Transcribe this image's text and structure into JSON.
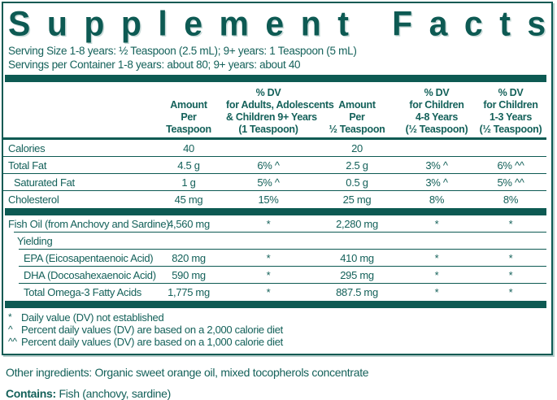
{
  "colors": {
    "teal": "#0d5a53"
  },
  "title": "Supplement Facts",
  "serving": {
    "line1": "Serving Size 1-8 years: ½ Teaspoon (2.5 mL); 9+ years: 1 Teaspoon (5 mL)",
    "line2": "Servings per Container 1-8 years: about 80; 9+ years: about 40"
  },
  "table": {
    "headers": [
      {
        "lines": []
      },
      {
        "lines": [
          "Amount",
          "Per",
          "Teaspoon"
        ]
      },
      {
        "lines": [
          "% DV",
          "for Adults, Adolescents",
          "& Children 9+ Years",
          "(1 Teaspoon)"
        ]
      },
      {
        "lines": [
          "Amount",
          "Per",
          "½ Teaspoon"
        ]
      },
      {
        "lines": [
          "% DV",
          "for Children",
          "4-8 Years",
          "(½ Teaspoon)"
        ]
      },
      {
        "lines": [
          "% DV",
          "for Children",
          "1-3 Years",
          "(½ Teaspoon)"
        ]
      }
    ],
    "rows": [
      {
        "type": "row",
        "label": "Calories",
        "indent": 0,
        "rule": "none",
        "values": [
          "40",
          "",
          "20",
          "",
          ""
        ]
      },
      {
        "type": "row",
        "label": "Total Fat",
        "indent": 0,
        "rule": "full",
        "values": [
          "4.5 g",
          "6% ^",
          "2.5 g",
          "3% ^",
          "6% ^^"
        ]
      },
      {
        "type": "row",
        "label": "Saturated Fat",
        "indent": 1,
        "rule": "full",
        "values": [
          "1 g",
          "5% ^",
          "0.5 g",
          "3% ^",
          "5% ^^"
        ]
      },
      {
        "type": "row",
        "label": "Cholesterol",
        "indent": 0,
        "rule": "full",
        "values": [
          "45 mg",
          "15%",
          "25 mg",
          "8%",
          "8%"
        ]
      },
      {
        "type": "bar"
      },
      {
        "type": "row",
        "label": "Fish Oil (from Anchovy and Sardine)",
        "indent": 0,
        "rule": "none",
        "values": [
          "4,560 mg",
          "*",
          "2,280 mg",
          "*",
          "*"
        ]
      },
      {
        "type": "row",
        "label": "Yielding",
        "indent": 2,
        "rule": "indent-sm",
        "values": [
          "",
          "",
          "",
          "",
          ""
        ]
      },
      {
        "type": "row",
        "label": "EPA (Eicosapentaenoic Acid)",
        "indent": 3,
        "rule": "indent-lg",
        "values": [
          "820 mg",
          "*",
          "410 mg",
          "*",
          "*"
        ]
      },
      {
        "type": "row",
        "label": "DHA (Docosahexaenoic Acid)",
        "indent": 3,
        "rule": "indent-lg",
        "values": [
          "590 mg",
          "*",
          "295 mg",
          "*",
          "*"
        ]
      },
      {
        "type": "row",
        "label": "Total Omega-3 Fatty Acids",
        "indent": 3,
        "rule": "indent-lg",
        "values": [
          "1,775 mg",
          "*",
          "887.5 mg",
          "*",
          "*"
        ]
      },
      {
        "type": "bar"
      }
    ]
  },
  "footnotes": [
    {
      "marker": "*",
      "text": "Daily value (DV) not established"
    },
    {
      "marker": "^",
      "text": "Percent daily values (DV) are based on a 2,000 calorie diet"
    },
    {
      "marker": "^^",
      "text": "Percent daily values (DV) are based on a 1,000 calorie diet"
    }
  ],
  "other_ingredients": "Other ingredients: Organic sweet orange oil, mixed tocopherols concentrate",
  "contains": {
    "label": "Contains:",
    "text": "Fish (anchovy, sardine)"
  }
}
